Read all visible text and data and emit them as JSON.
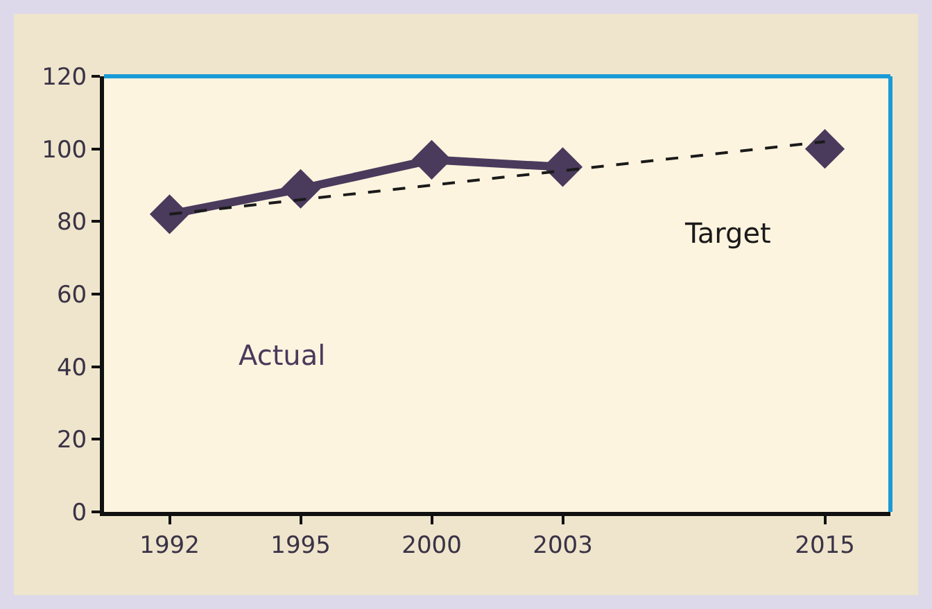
{
  "chart_data": {
    "type": "line",
    "categories": [
      "1992",
      "1995",
      "2000",
      "2003",
      null,
      "2015"
    ],
    "series": [
      {
        "name": "Actual",
        "color": "#4a3a5c",
        "values": [
          82,
          89,
          97,
          95,
          null,
          100
        ],
        "marker": "diamond",
        "line_style": "solid"
      },
      {
        "name": "Target",
        "color": "#1a1a1a",
        "values": [
          82,
          86,
          90,
          94,
          98,
          102
        ],
        "marker": "none",
        "line_style": "dashed"
      }
    ],
    "ylim": [
      0,
      120
    ],
    "yticks": [
      0,
      20,
      40,
      60,
      80,
      100,
      120
    ],
    "grid": false,
    "legend": false
  }
}
